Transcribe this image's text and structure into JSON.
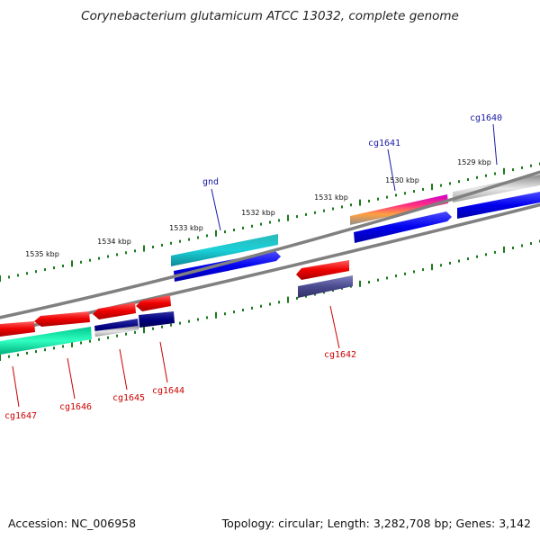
{
  "title": "Corynebacterium glutamicum ATCC 13032, complete genome",
  "footer": {
    "accession": "Accession: NC_006958",
    "summary": "Topology: circular; Length: 3,282,708 bp; Genes: 3,142"
  },
  "ticks": [
    "1529 kbp",
    "1530 kbp",
    "1531 kbp",
    "1532 kbp",
    "1533 kbp",
    "1534 kbp",
    "1535 kbp"
  ],
  "upper_labels": [
    "cg1640",
    "cg1641",
    "gnd"
  ],
  "lower_labels": [
    "cg1642",
    "cg1644",
    "cg1645",
    "cg1646",
    "cg1647"
  ],
  "colors": {
    "upper_label": "#1a1aa8",
    "lower_label": "#cc0000",
    "backbone": "#808080",
    "tick": "#1a7a1a",
    "forward_cds": "#0000ee",
    "reverse_cds": "#ee0000"
  }
}
